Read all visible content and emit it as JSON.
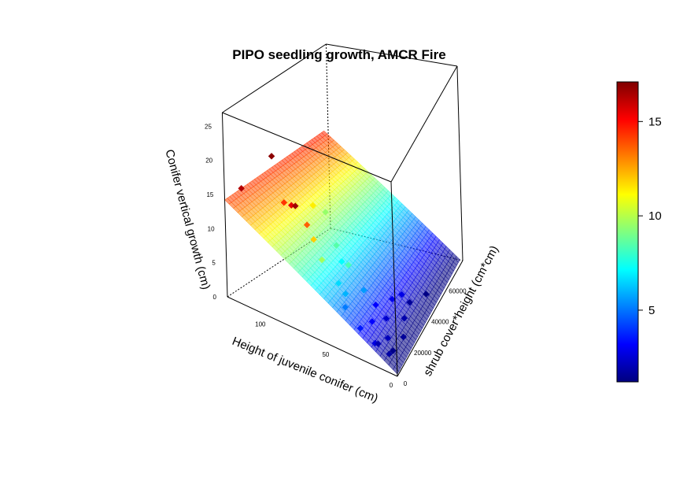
{
  "chart_data": {
    "type": "scatter",
    "subtype": "3d-surface-with-points",
    "title": "PIPO seedling growth, AMCR Fire",
    "xlabel": "Height of juvenile conifer (cm)",
    "ylabel": "shrub cover*height (cm*cm)",
    "zlabel": "Conifer vertical growth (cm)",
    "xlim": [
      0,
      130
    ],
    "ylim": [
      0,
      75000
    ],
    "zlim": [
      0,
      27
    ],
    "x_ticks": [
      0,
      50,
      100
    ],
    "y_ticks": [
      0,
      20000,
      40000,
      60000
    ],
    "z_ticks": [
      0,
      5,
      10,
      15,
      20,
      25
    ],
    "surface": {
      "description": "linear fit plane",
      "intercept": 0.3,
      "coef_x": 0.107,
      "coef_y": 6e-05,
      "x_range": [
        0,
        130
      ],
      "y_range": [
        0,
        72000
      ]
    },
    "colorbar": {
      "min": 1.2,
      "max": 17.1,
      "ticks": [
        5,
        10,
        15
      ]
    },
    "points": [
      {
        "x": 125,
        "y": 30000,
        "z": 16.9
      },
      {
        "x": 120,
        "y": 3000,
        "z": 16.3
      },
      {
        "x": 98,
        "y": 14000,
        "z": 14.3
      },
      {
        "x": 87,
        "y": 9000,
        "z": 15.5
      },
      {
        "x": 80,
        "y": 5000,
        "z": 16.6
      },
      {
        "x": 75,
        "y": 9000,
        "z": 13.6
      },
      {
        "x": 93,
        "y": 32000,
        "z": 11.4
      },
      {
        "x": 90,
        "y": 39000,
        "z": 9.5
      },
      {
        "x": 70,
        "y": 9000,
        "z": 11.9
      },
      {
        "x": 67,
        "y": 25000,
        "z": 8.5
      },
      {
        "x": 63,
        "y": 8000,
        "z": 9.7
      },
      {
        "x": 60,
        "y": 22000,
        "z": 7.2
      },
      {
        "x": 53,
        "y": 11000,
        "z": 6.6
      },
      {
        "x": 50,
        "y": 17000,
        "z": 8.3
      },
      {
        "x": 46,
        "y": 9000,
        "z": 6.0
      },
      {
        "x": 43,
        "y": 5000,
        "z": 5.1
      },
      {
        "x": 38,
        "y": 17000,
        "z": 5.6
      },
      {
        "x": 30,
        "y": 3000,
        "z": 3.6
      },
      {
        "x": 27,
        "y": 11000,
        "z": 3.2
      },
      {
        "x": 32,
        "y": 21000,
        "z": 3.2
      },
      {
        "x": 25,
        "y": 29000,
        "z": 2.9
      },
      {
        "x": 22,
        "y": 19000,
        "z": 2.4
      },
      {
        "x": 18,
        "y": 2000,
        "z": 2.7
      },
      {
        "x": 18,
        "y": 5000,
        "z": 2.0
      },
      {
        "x": 14,
        "y": 10000,
        "z": 2.1
      },
      {
        "x": 12,
        "y": 25000,
        "z": 1.9
      },
      {
        "x": 16,
        "y": 36000,
        "z": 1.6
      },
      {
        "x": 8,
        "y": 3000,
        "z": 1.8
      },
      {
        "x": 8,
        "y": 7000,
        "z": 1.4
      },
      {
        "x": 6,
        "y": 16000,
        "z": 1.6
      },
      {
        "x": 9,
        "y": 45000,
        "z": 1.3
      },
      {
        "x": 21,
        "y": 34000,
        "z": 2.8
      }
    ]
  }
}
